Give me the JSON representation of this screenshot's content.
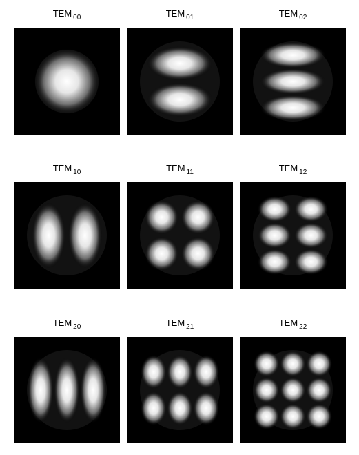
{
  "modes": [
    {
      "base": "TEM",
      "sub": "00",
      "m": 0,
      "n": 0
    },
    {
      "base": "TEM",
      "sub": "01",
      "m": 0,
      "n": 1
    },
    {
      "base": "TEM",
      "sub": "02",
      "m": 0,
      "n": 2
    },
    {
      "base": "TEM",
      "sub": "10",
      "m": 1,
      "n": 0
    },
    {
      "base": "TEM",
      "sub": "11",
      "m": 1,
      "n": 1
    },
    {
      "base": "TEM",
      "sub": "12",
      "m": 1,
      "n": 2
    },
    {
      "base": "TEM",
      "sub": "20",
      "m": 2,
      "n": 0
    },
    {
      "base": "TEM",
      "sub": "21",
      "m": 2,
      "n": 1
    },
    {
      "base": "TEM",
      "sub": "22",
      "m": 2,
      "n": 2
    }
  ]
}
